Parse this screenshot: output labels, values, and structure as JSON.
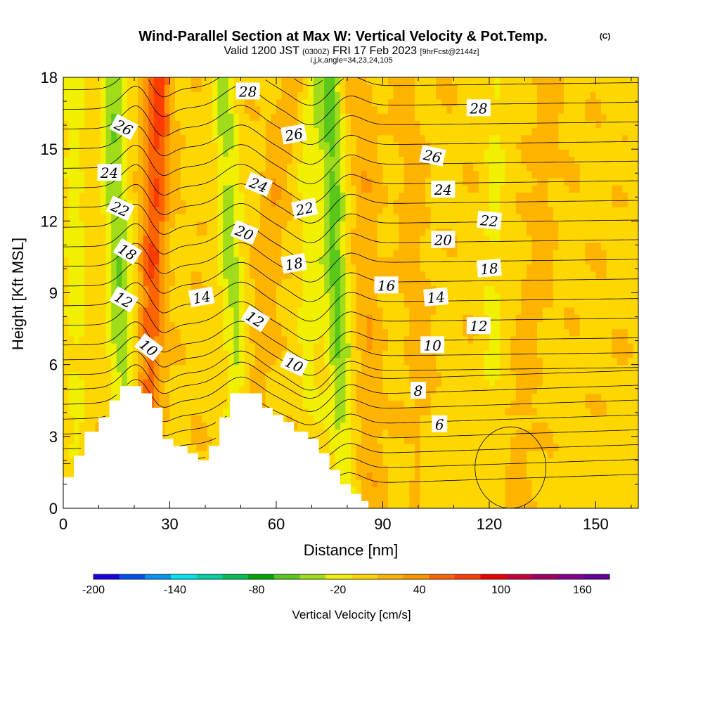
{
  "header": {
    "title": "Wind-Parallel Section at Max W: Vertical Velocity & Pot.Temp.",
    "title_mark": "(C)",
    "valid_prefix": "Valid 1200 JST",
    "valid_utc": "(0300Z)",
    "valid_date": "FRI 17 Feb 2023",
    "forecast_info": "[9hrFcst@2144z]",
    "params": "i,j,k,angle=34,23,24,105"
  },
  "colors": {
    "background": "#ffffff",
    "terrain": "#ffffff",
    "contour": "#000000",
    "palette": [
      "#1a00e6",
      "#0050f0",
      "#0096f0",
      "#00e6f0",
      "#00d2a0",
      "#00c050",
      "#00a600",
      "#5ac81a",
      "#a0dc1a",
      "#f0f000",
      "#ffd700",
      "#ffb400",
      "#ff9600",
      "#ff6400",
      "#ff3c00",
      "#f00000",
      "#c8003c",
      "#a00064",
      "#82008c",
      "#640096"
    ]
  },
  "chart_data": {
    "type": "heatmap",
    "xlabel": "Distance [nm]",
    "ylabel": "Height [Kft MSL]",
    "xlim": [
      0,
      162
    ],
    "ylim": [
      0,
      18
    ],
    "xticks": [
      "0",
      "30",
      "60",
      "90",
      "120",
      "150"
    ],
    "yticks": [
      "0",
      "3",
      "6",
      "9",
      "12",
      "15",
      "18"
    ],
    "field": "Vertical Velocity [cm/s]",
    "colorbar": {
      "title": "Vertical Velocity [cm/s]",
      "min": -200,
      "max": 180,
      "step": 20,
      "tick_labels": [
        "-200",
        "-140",
        "-80",
        "-20",
        "40",
        "100",
        "160"
      ]
    },
    "updraft_bands": [
      {
        "x_bottom": 23,
        "x_top": 27,
        "value": 70
      },
      {
        "x_bottom": 49,
        "x_top": 64,
        "value": 20
      },
      {
        "x_bottom": 87,
        "x_top": 84,
        "value": 20
      },
      {
        "x_bottom": 103,
        "x_top": 96,
        "value": 15
      },
      {
        "x_bottom": 127,
        "x_top": 138,
        "value": 15
      }
    ],
    "downdraft_bands": [
      {
        "x_bottom": 18,
        "x_top": 14,
        "value": -45
      },
      {
        "x_bottom": 51,
        "x_top": 45,
        "value": -35
      },
      {
        "x_bottom": 79,
        "x_top": 75,
        "value": -50
      },
      {
        "x_bottom": 69,
        "x_top": 70,
        "value": -20
      },
      {
        "x_bottom": 120,
        "x_top": 122,
        "value": -15
      },
      {
        "x_bottom": 4,
        "x_top": 3,
        "value": -20
      }
    ],
    "terrain_kft": [
      [
        0,
        1.3
      ],
      [
        3,
        1.3
      ],
      [
        3,
        2.2
      ],
      [
        6,
        2.2
      ],
      [
        6,
        3.2
      ],
      [
        10,
        3.2
      ],
      [
        10,
        3.8
      ],
      [
        13,
        3.8
      ],
      [
        13,
        4.5
      ],
      [
        16,
        4.5
      ],
      [
        16,
        5.1
      ],
      [
        22,
        5.1
      ],
      [
        22,
        4.8
      ],
      [
        25,
        4.8
      ],
      [
        25,
        4.2
      ],
      [
        28,
        4.2
      ],
      [
        28,
        2.9
      ],
      [
        31,
        2.9
      ],
      [
        31,
        2.6
      ],
      [
        35,
        2.6
      ],
      [
        35,
        2.3
      ],
      [
        38,
        2.3
      ],
      [
        38,
        2.0
      ],
      [
        41,
        2.0
      ],
      [
        41,
        2.6
      ],
      [
        44,
        2.6
      ],
      [
        44,
        3.8
      ],
      [
        47,
        3.8
      ],
      [
        47,
        4.8
      ],
      [
        56,
        4.8
      ],
      [
        56,
        4.2
      ],
      [
        59,
        4.2
      ],
      [
        59,
        3.9
      ],
      [
        62,
        3.9
      ],
      [
        62,
        3.6
      ],
      [
        65,
        3.6
      ],
      [
        65,
        3.2
      ],
      [
        69,
        3.2
      ],
      [
        69,
        2.9
      ],
      [
        72,
        2.9
      ],
      [
        72,
        2.3
      ],
      [
        75,
        2.3
      ],
      [
        75,
        1.6
      ],
      [
        78,
        1.6
      ],
      [
        78,
        1.0
      ],
      [
        81,
        1.0
      ],
      [
        81,
        0.6
      ],
      [
        84,
        0.6
      ],
      [
        84,
        0.3
      ],
      [
        86,
        0.3
      ],
      [
        86,
        0
      ]
    ],
    "theta_contours": [
      4,
      5,
      6,
      7,
      8,
      9,
      10,
      11,
      12,
      13,
      14,
      15,
      16,
      17,
      18,
      19,
      20,
      21,
      22,
      23,
      24,
      25,
      26,
      27,
      28,
      29
    ],
    "contour_labels": [
      {
        "text": "28",
        "x": 52,
        "y": 17.4,
        "angle": 0
      },
      {
        "text": "28",
        "x": 117,
        "y": 16.7,
        "angle": 0
      },
      {
        "text": "26",
        "x": 17,
        "y": 15.9,
        "angle": 28
      },
      {
        "text": "26",
        "x": 65,
        "y": 15.6,
        "angle": -10
      },
      {
        "text": "26",
        "x": 104,
        "y": 14.7,
        "angle": 12
      },
      {
        "text": "24",
        "x": 13,
        "y": 14.0,
        "angle": 0
      },
      {
        "text": "24",
        "x": 55,
        "y": 13.5,
        "angle": 22
      },
      {
        "text": "24",
        "x": 107,
        "y": 13.3,
        "angle": 0
      },
      {
        "text": "22",
        "x": 16,
        "y": 12.5,
        "angle": 25
      },
      {
        "text": "22",
        "x": 68,
        "y": 12.5,
        "angle": -12
      },
      {
        "text": "22",
        "x": 120,
        "y": 12.0,
        "angle": 5
      },
      {
        "text": "20",
        "x": 51,
        "y": 11.5,
        "angle": 22
      },
      {
        "text": "20",
        "x": 107,
        "y": 11.2,
        "angle": 0
      },
      {
        "text": "18",
        "x": 18,
        "y": 10.7,
        "angle": 32
      },
      {
        "text": "18",
        "x": 65,
        "y": 10.2,
        "angle": -10
      },
      {
        "text": "18",
        "x": 120,
        "y": 10.0,
        "angle": -5
      },
      {
        "text": "16",
        "x": 91,
        "y": 9.3,
        "angle": 0
      },
      {
        "text": "14",
        "x": 39,
        "y": 8.8,
        "angle": -10
      },
      {
        "text": "14",
        "x": 105,
        "y": 8.8,
        "angle": -5
      },
      {
        "text": "12",
        "x": 17,
        "y": 8.7,
        "angle": 30
      },
      {
        "text": "12",
        "x": 54,
        "y": 7.9,
        "angle": 32
      },
      {
        "text": "12",
        "x": 117,
        "y": 7.6,
        "angle": 0
      },
      {
        "text": "10",
        "x": 24,
        "y": 6.7,
        "angle": 38
      },
      {
        "text": "10",
        "x": 65,
        "y": 6.0,
        "angle": 25
      },
      {
        "text": "10",
        "x": 104,
        "y": 6.8,
        "angle": 0
      },
      {
        "text": "8",
        "x": 100,
        "y": 4.9,
        "angle": 0
      },
      {
        "text": "6",
        "x": 106,
        "y": 3.5,
        "angle": 0
      }
    ]
  }
}
